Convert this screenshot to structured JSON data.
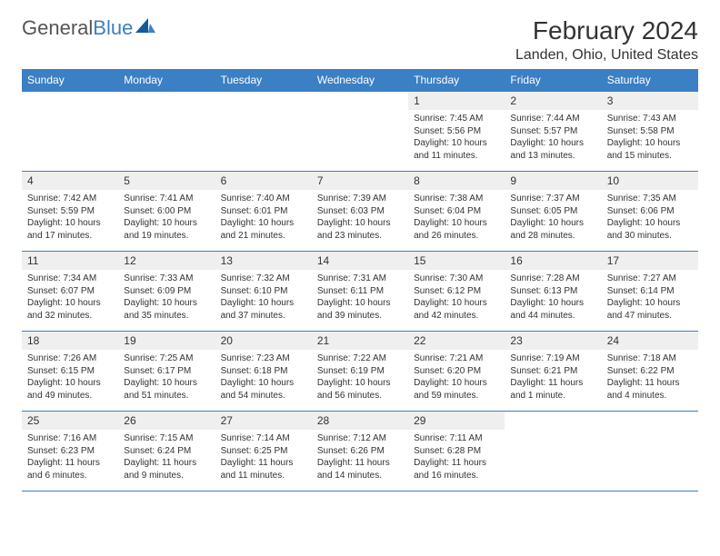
{
  "brand": {
    "part1": "General",
    "part2": "Blue"
  },
  "title": "February 2024",
  "location": "Landen, Ohio, United States",
  "colors": {
    "header_bg": "#3b7fc4",
    "header_fg": "#ffffff",
    "border": "#3b7fc4",
    "daynum_bg": "#efefef",
    "text": "#333333",
    "page_bg": "#ffffff"
  },
  "layout": {
    "first_weekday_index": 4,
    "days_in_month": 29,
    "weeks": 5
  },
  "weekdays": [
    "Sunday",
    "Monday",
    "Tuesday",
    "Wednesday",
    "Thursday",
    "Friday",
    "Saturday"
  ],
  "days": [
    {
      "n": 1,
      "sunrise": "7:45 AM",
      "sunset": "5:56 PM",
      "daylight": "10 hours and 11 minutes."
    },
    {
      "n": 2,
      "sunrise": "7:44 AM",
      "sunset": "5:57 PM",
      "daylight": "10 hours and 13 minutes."
    },
    {
      "n": 3,
      "sunrise": "7:43 AM",
      "sunset": "5:58 PM",
      "daylight": "10 hours and 15 minutes."
    },
    {
      "n": 4,
      "sunrise": "7:42 AM",
      "sunset": "5:59 PM",
      "daylight": "10 hours and 17 minutes."
    },
    {
      "n": 5,
      "sunrise": "7:41 AM",
      "sunset": "6:00 PM",
      "daylight": "10 hours and 19 minutes."
    },
    {
      "n": 6,
      "sunrise": "7:40 AM",
      "sunset": "6:01 PM",
      "daylight": "10 hours and 21 minutes."
    },
    {
      "n": 7,
      "sunrise": "7:39 AM",
      "sunset": "6:03 PM",
      "daylight": "10 hours and 23 minutes."
    },
    {
      "n": 8,
      "sunrise": "7:38 AM",
      "sunset": "6:04 PM",
      "daylight": "10 hours and 26 minutes."
    },
    {
      "n": 9,
      "sunrise": "7:37 AM",
      "sunset": "6:05 PM",
      "daylight": "10 hours and 28 minutes."
    },
    {
      "n": 10,
      "sunrise": "7:35 AM",
      "sunset": "6:06 PM",
      "daylight": "10 hours and 30 minutes."
    },
    {
      "n": 11,
      "sunrise": "7:34 AM",
      "sunset": "6:07 PM",
      "daylight": "10 hours and 32 minutes."
    },
    {
      "n": 12,
      "sunrise": "7:33 AM",
      "sunset": "6:09 PM",
      "daylight": "10 hours and 35 minutes."
    },
    {
      "n": 13,
      "sunrise": "7:32 AM",
      "sunset": "6:10 PM",
      "daylight": "10 hours and 37 minutes."
    },
    {
      "n": 14,
      "sunrise": "7:31 AM",
      "sunset": "6:11 PM",
      "daylight": "10 hours and 39 minutes."
    },
    {
      "n": 15,
      "sunrise": "7:30 AM",
      "sunset": "6:12 PM",
      "daylight": "10 hours and 42 minutes."
    },
    {
      "n": 16,
      "sunrise": "7:28 AM",
      "sunset": "6:13 PM",
      "daylight": "10 hours and 44 minutes."
    },
    {
      "n": 17,
      "sunrise": "7:27 AM",
      "sunset": "6:14 PM",
      "daylight": "10 hours and 47 minutes."
    },
    {
      "n": 18,
      "sunrise": "7:26 AM",
      "sunset": "6:15 PM",
      "daylight": "10 hours and 49 minutes."
    },
    {
      "n": 19,
      "sunrise": "7:25 AM",
      "sunset": "6:17 PM",
      "daylight": "10 hours and 51 minutes."
    },
    {
      "n": 20,
      "sunrise": "7:23 AM",
      "sunset": "6:18 PM",
      "daylight": "10 hours and 54 minutes."
    },
    {
      "n": 21,
      "sunrise": "7:22 AM",
      "sunset": "6:19 PM",
      "daylight": "10 hours and 56 minutes."
    },
    {
      "n": 22,
      "sunrise": "7:21 AM",
      "sunset": "6:20 PM",
      "daylight": "10 hours and 59 minutes."
    },
    {
      "n": 23,
      "sunrise": "7:19 AM",
      "sunset": "6:21 PM",
      "daylight": "11 hours and 1 minute."
    },
    {
      "n": 24,
      "sunrise": "7:18 AM",
      "sunset": "6:22 PM",
      "daylight": "11 hours and 4 minutes."
    },
    {
      "n": 25,
      "sunrise": "7:16 AM",
      "sunset": "6:23 PM",
      "daylight": "11 hours and 6 minutes."
    },
    {
      "n": 26,
      "sunrise": "7:15 AM",
      "sunset": "6:24 PM",
      "daylight": "11 hours and 9 minutes."
    },
    {
      "n": 27,
      "sunrise": "7:14 AM",
      "sunset": "6:25 PM",
      "daylight": "11 hours and 11 minutes."
    },
    {
      "n": 28,
      "sunrise": "7:12 AM",
      "sunset": "6:26 PM",
      "daylight": "11 hours and 14 minutes."
    },
    {
      "n": 29,
      "sunrise": "7:11 AM",
      "sunset": "6:28 PM",
      "daylight": "11 hours and 16 minutes."
    }
  ],
  "labels": {
    "sunrise": "Sunrise:",
    "sunset": "Sunset:",
    "daylight": "Daylight:"
  }
}
